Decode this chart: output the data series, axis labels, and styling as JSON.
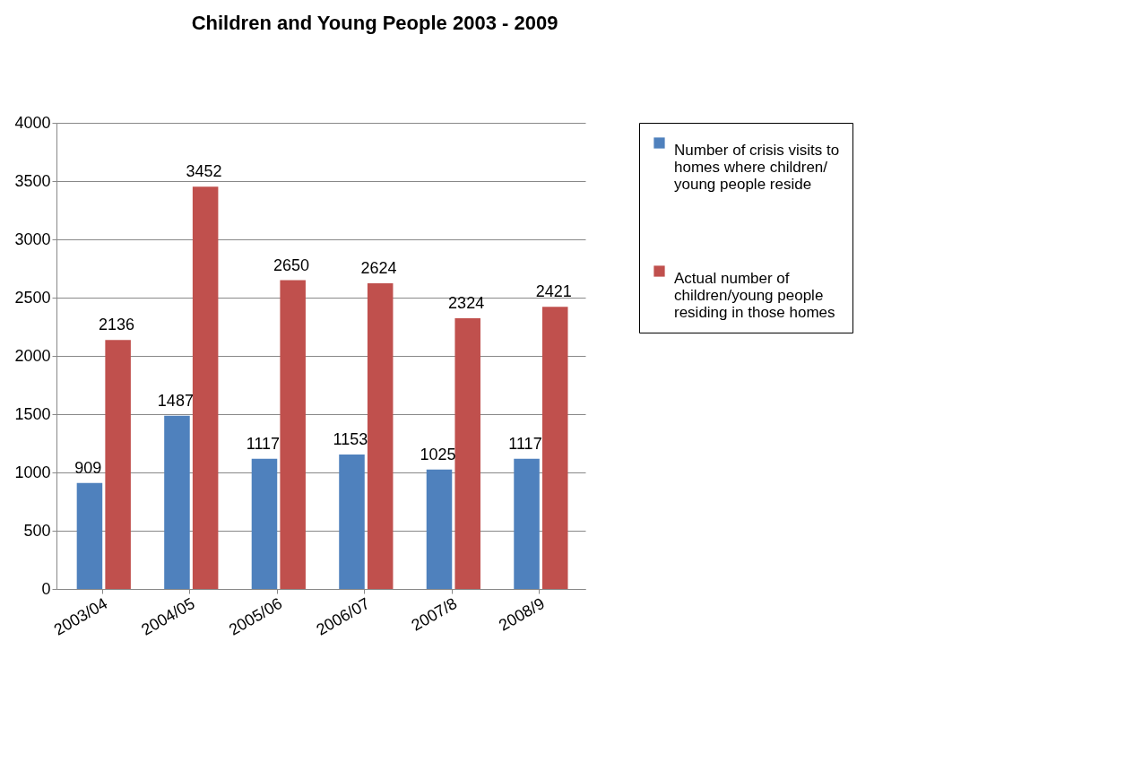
{
  "chart_data": {
    "type": "bar",
    "title": "Children and Young People 2003 - 2009",
    "categories": [
      "2003/04",
      "2004/05",
      "2005/06",
      "2006/07",
      "2007/8",
      "2008/9"
    ],
    "series": [
      {
        "name": "Number of crisis visits to homes where children/ young people reside",
        "color": "#4f81bd",
        "values": [
          909,
          1487,
          1117,
          1153,
          1025,
          1117
        ]
      },
      {
        "name": "Actual number of children/young people residing in those homes",
        "color": "#c0504d",
        "values": [
          2136,
          3452,
          2650,
          2624,
          2324,
          2421
        ]
      }
    ],
    "ylim": [
      0,
      4000
    ],
    "yticks": [
      0,
      500,
      1000,
      1500,
      2000,
      2500,
      3000,
      3500,
      4000
    ],
    "grid": "y",
    "legend": "right",
    "data_labels": true
  }
}
